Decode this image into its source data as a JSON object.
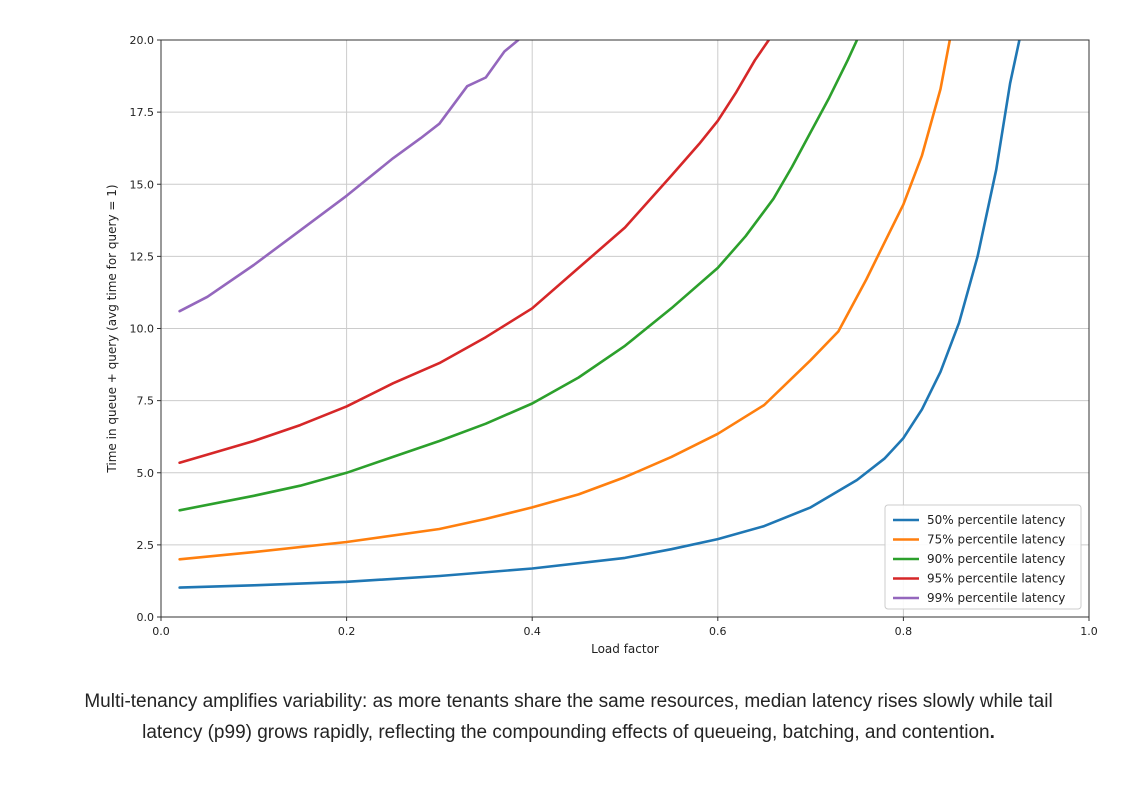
{
  "chart_data": {
    "type": "line",
    "title": "",
    "xlabel": "Load factor",
    "ylabel": "Time in queue + query (avg time for query = 1)",
    "xlim": [
      0.0,
      1.0
    ],
    "ylim": [
      0.0,
      20.0
    ],
    "xticks": [
      "0.0",
      "0.2",
      "0.4",
      "0.6",
      "0.8",
      "1.0"
    ],
    "xtick_values": [
      0.0,
      0.2,
      0.4,
      0.6,
      0.8,
      1.0
    ],
    "yticks": [
      "0.0",
      "2.5",
      "5.0",
      "7.5",
      "10.0",
      "12.5",
      "15.0",
      "17.5",
      "20.0"
    ],
    "ytick_values": [
      0.0,
      2.5,
      5.0,
      7.5,
      10.0,
      12.5,
      15.0,
      17.5,
      20.0
    ],
    "grid": true,
    "legend_position": "lower-right",
    "series": [
      {
        "name": "50% percentile latency",
        "color": "#1f77b4",
        "points": [
          [
            0.02,
            1.02
          ],
          [
            0.1,
            1.1
          ],
          [
            0.2,
            1.22
          ],
          [
            0.3,
            1.42
          ],
          [
            0.4,
            1.68
          ],
          [
            0.5,
            2.05
          ],
          [
            0.55,
            2.35
          ],
          [
            0.6,
            2.7
          ],
          [
            0.65,
            3.15
          ],
          [
            0.7,
            3.8
          ],
          [
            0.75,
            4.75
          ],
          [
            0.78,
            5.5
          ],
          [
            0.8,
            6.2
          ],
          [
            0.82,
            7.2
          ],
          [
            0.84,
            8.5
          ],
          [
            0.86,
            10.2
          ],
          [
            0.88,
            12.5
          ],
          [
            0.9,
            15.5
          ],
          [
            0.915,
            18.5
          ],
          [
            0.925,
            20.0
          ]
        ]
      },
      {
        "name": "75% percentile latency",
        "color": "#ff7f0e",
        "points": [
          [
            0.02,
            2.0
          ],
          [
            0.1,
            2.25
          ],
          [
            0.2,
            2.6
          ],
          [
            0.3,
            3.05
          ],
          [
            0.35,
            3.4
          ],
          [
            0.4,
            3.8
          ],
          [
            0.45,
            4.25
          ],
          [
            0.5,
            4.85
          ],
          [
            0.55,
            5.55
          ],
          [
            0.6,
            6.35
          ],
          [
            0.65,
            7.35
          ],
          [
            0.7,
            8.9
          ],
          [
            0.73,
            9.9
          ],
          [
            0.76,
            11.7
          ],
          [
            0.78,
            13.0
          ],
          [
            0.8,
            14.3
          ],
          [
            0.82,
            16.0
          ],
          [
            0.84,
            18.3
          ],
          [
            0.85,
            20.0
          ]
        ]
      },
      {
        "name": "90% percentile latency",
        "color": "#2ca02c",
        "points": [
          [
            0.02,
            3.7
          ],
          [
            0.1,
            4.2
          ],
          [
            0.15,
            4.55
          ],
          [
            0.2,
            5.0
          ],
          [
            0.25,
            5.55
          ],
          [
            0.3,
            6.1
          ],
          [
            0.35,
            6.7
          ],
          [
            0.4,
            7.4
          ],
          [
            0.45,
            8.3
          ],
          [
            0.5,
            9.4
          ],
          [
            0.55,
            10.7
          ],
          [
            0.6,
            12.1
          ],
          [
            0.63,
            13.2
          ],
          [
            0.66,
            14.5
          ],
          [
            0.68,
            15.6
          ],
          [
            0.7,
            16.8
          ],
          [
            0.72,
            18.0
          ],
          [
            0.74,
            19.3
          ],
          [
            0.75,
            20.0
          ]
        ]
      },
      {
        "name": "95% percentile latency",
        "color": "#d62728",
        "points": [
          [
            0.02,
            5.35
          ],
          [
            0.1,
            6.1
          ],
          [
            0.15,
            6.65
          ],
          [
            0.2,
            7.3
          ],
          [
            0.25,
            8.1
          ],
          [
            0.3,
            8.8
          ],
          [
            0.35,
            9.7
          ],
          [
            0.4,
            10.7
          ],
          [
            0.45,
            12.1
          ],
          [
            0.5,
            13.5
          ],
          [
            0.55,
            15.3
          ],
          [
            0.58,
            16.4
          ],
          [
            0.6,
            17.2
          ],
          [
            0.62,
            18.2
          ],
          [
            0.64,
            19.3
          ],
          [
            0.655,
            20.0
          ]
        ]
      },
      {
        "name": "99% percentile latency",
        "color": "#9467bd",
        "points": [
          [
            0.02,
            10.6
          ],
          [
            0.05,
            11.1
          ],
          [
            0.1,
            12.2
          ],
          [
            0.15,
            13.4
          ],
          [
            0.2,
            14.6
          ],
          [
            0.25,
            15.9
          ],
          [
            0.28,
            16.6
          ],
          [
            0.3,
            17.1
          ],
          [
            0.33,
            18.4
          ],
          [
            0.35,
            18.7
          ],
          [
            0.37,
            19.6
          ],
          [
            0.385,
            20.0
          ]
        ]
      }
    ]
  },
  "caption": {
    "text": "Multi-tenancy amplifies variability: as more tenants share the same resources, median latency rises slowly while tail latency (p99) grows rapidly, reflecting the compounding effects of queueing, batching, and contention",
    "bold_suffix": "."
  }
}
